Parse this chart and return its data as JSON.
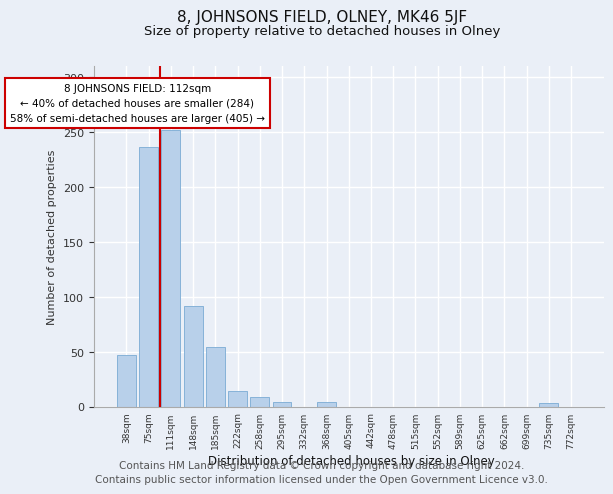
{
  "title": "8, JOHNSONS FIELD, OLNEY, MK46 5JF",
  "subtitle": "Size of property relative to detached houses in Olney",
  "xlabel": "Distribution of detached houses by size in Olney",
  "ylabel": "Number of detached properties",
  "categories": [
    "38sqm",
    "75sqm",
    "111sqm",
    "148sqm",
    "185sqm",
    "222sqm",
    "258sqm",
    "295sqm",
    "332sqm",
    "368sqm",
    "405sqm",
    "442sqm",
    "478sqm",
    "515sqm",
    "552sqm",
    "589sqm",
    "625sqm",
    "662sqm",
    "699sqm",
    "735sqm",
    "772sqm"
  ],
  "values": [
    47,
    237,
    252,
    92,
    54,
    14,
    9,
    4,
    0,
    4,
    0,
    0,
    0,
    0,
    0,
    0,
    0,
    0,
    0,
    3,
    0
  ],
  "bar_color": "#b8d0ea",
  "bar_edgecolor": "#7aabd4",
  "highlight_index": 2,
  "highlight_color": "#cc0000",
  "ylim": [
    0,
    310
  ],
  "yticks": [
    0,
    50,
    100,
    150,
    200,
    250,
    300
  ],
  "annotation_text": "8 JOHNSONS FIELD: 112sqm\n← 40% of detached houses are smaller (284)\n58% of semi-detached houses are larger (405) →",
  "annotation_box_color": "#ffffff",
  "annotation_box_edgecolor": "#cc0000",
  "footer_line1": "Contains HM Land Registry data © Crown copyright and database right 2024.",
  "footer_line2": "Contains public sector information licensed under the Open Government Licence v3.0.",
  "background_color": "#eaeff7",
  "grid_color": "#ffffff",
  "title_fontsize": 11,
  "subtitle_fontsize": 9.5,
  "footer_fontsize": 7.5
}
